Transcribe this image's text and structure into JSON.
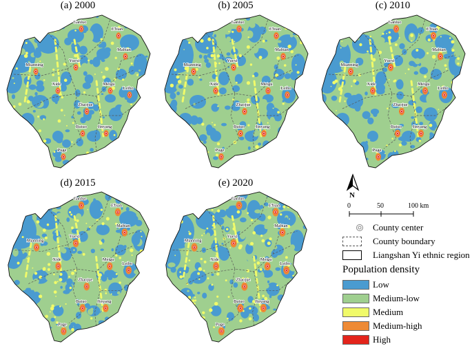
{
  "panels": [
    {
      "title": "(a) 2000"
    },
    {
      "title": "(b) 2005"
    },
    {
      "title": "(c) 2010"
    },
    {
      "title": "(d) 2015"
    },
    {
      "title": "(e) 2020"
    }
  ],
  "counties": [
    "Ganluo",
    "E'bian",
    "Mabian",
    "Yuexi",
    "Mianning",
    "Xide",
    "Meigu",
    "Leibo",
    "Zhaojue",
    "Butuo",
    "Jinyang",
    "Puge"
  ],
  "north_label": "N",
  "scale": {
    "ticks": [
      "0",
      "50",
      "100 km"
    ]
  },
  "legend": {
    "county_center": "County center",
    "county_boundary": "County boundary",
    "region": "Liangshan Yi ethnic region",
    "heading": "Population density",
    "classes": [
      {
        "label": "Low",
        "color": "#4a9bd0"
      },
      {
        "label": "Medium-low",
        "color": "#9fcf8f"
      },
      {
        "label": "Medium",
        "color": "#f0fa6a"
      },
      {
        "label": "Medium-high",
        "color": "#ee8a35"
      },
      {
        "label": "High",
        "color": "#e3241b"
      }
    ]
  }
}
